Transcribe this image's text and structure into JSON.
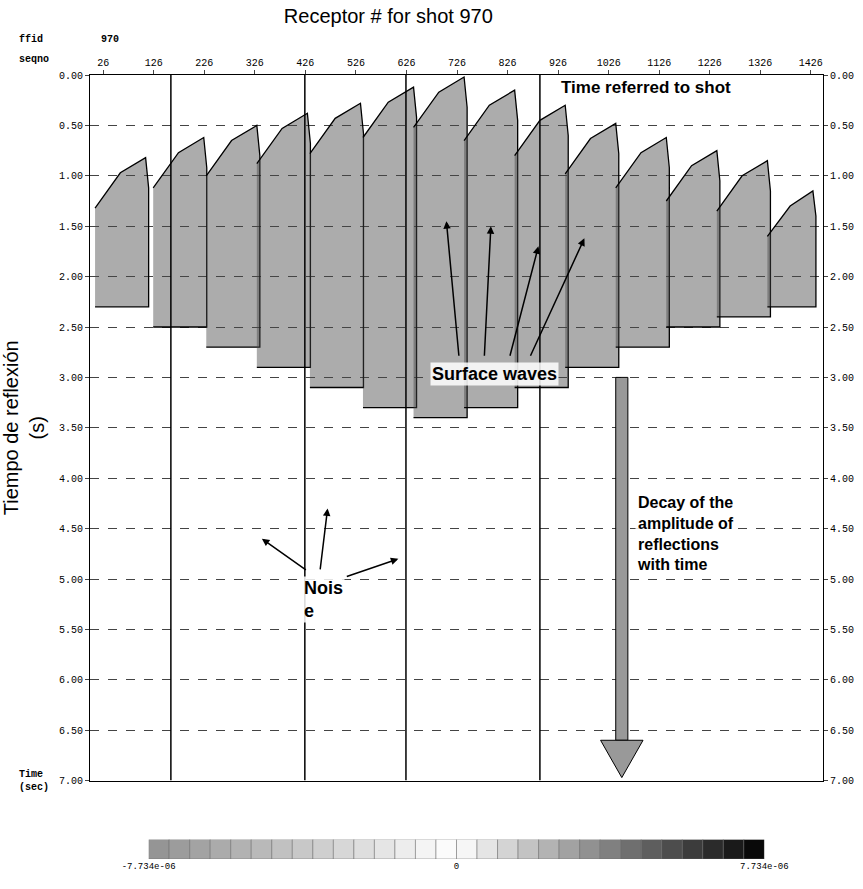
{
  "chart_data": {
    "type": "seismic_shot_gather",
    "title": "Receptor # for shot 970",
    "y_title": "Tiempo de reflexión\n(s)",
    "record": {
      "label": "ffid",
      "value": 970
    },
    "seqno_label": "seqno",
    "time_label": "Time\n(sec)",
    "color": "#000000",
    "grid": true,
    "xlim": [
      0,
      1450
    ],
    "xticks": [
      26,
      126,
      226,
      326,
      426,
      526,
      626,
      726,
      826,
      926,
      1026,
      1126,
      1226,
      1326,
      1426
    ],
    "ylim": [
      0,
      7
    ],
    "yticks": [
      {
        "value": 0,
        "label": "0.00"
      },
      {
        "value": 0.5,
        "label": "0.50"
      },
      {
        "value": 1,
        "label": "1.00"
      },
      {
        "value": 1.5,
        "label": "1.50"
      },
      {
        "value": 2,
        "label": "2.00"
      },
      {
        "value": 2.5,
        "label": "2.50"
      },
      {
        "value": 3,
        "label": "3.00"
      },
      {
        "value": 3.5,
        "label": "3.50"
      },
      {
        "value": 4,
        "label": "4.00"
      },
      {
        "value": 4.5,
        "label": "4.50"
      },
      {
        "value": 5,
        "label": "5.00"
      },
      {
        "value": 5.5,
        "label": "5.50"
      },
      {
        "value": 6,
        "label": "6.00"
      },
      {
        "value": 6.5,
        "label": "6.50"
      },
      {
        "value": 7,
        "label": "7.00"
      }
    ],
    "events": [
      {
        "x": [
          10,
          60,
          110,
          116,
          116,
          10
        ],
        "t": [
          1.32,
          0.97,
          0.82,
          1.12,
          2.3,
          2.3
        ]
      },
      {
        "x": [
          125,
          175,
          225,
          231,
          231,
          125
        ],
        "t": [
          1.12,
          0.77,
          0.62,
          0.92,
          2.5,
          2.5
        ]
      },
      {
        "x": [
          230,
          280,
          330,
          336,
          336,
          230
        ],
        "t": [
          1.0,
          0.65,
          0.5,
          0.8,
          2.7,
          2.7
        ]
      },
      {
        "x": [
          330,
          380,
          430,
          436,
          436,
          330
        ],
        "t": [
          0.88,
          0.53,
          0.38,
          0.68,
          2.9,
          2.9
        ]
      },
      {
        "x": [
          435,
          485,
          535,
          541,
          541,
          435
        ],
        "t": [
          0.78,
          0.43,
          0.28,
          0.58,
          3.1,
          3.1
        ]
      },
      {
        "x": [
          540,
          590,
          640,
          646,
          646,
          540
        ],
        "t": [
          0.62,
          0.27,
          0.12,
          0.42,
          3.3,
          3.3
        ]
      },
      {
        "x": [
          640,
          690,
          740,
          746,
          746,
          640
        ],
        "t": [
          0.52,
          0.17,
          0.02,
          0.32,
          3.4,
          3.4
        ]
      },
      {
        "x": [
          740,
          790,
          840,
          846,
          846,
          740
        ],
        "t": [
          0.65,
          0.3,
          0.15,
          0.45,
          3.3,
          3.3
        ]
      },
      {
        "x": [
          840,
          890,
          940,
          946,
          946,
          840
        ],
        "t": [
          0.8,
          0.45,
          0.3,
          0.6,
          3.1,
          3.1
        ]
      },
      {
        "x": [
          940,
          990,
          1040,
          1046,
          1046,
          940
        ],
        "t": [
          0.98,
          0.63,
          0.48,
          0.78,
          2.9,
          2.9
        ]
      },
      {
        "x": [
          1040,
          1090,
          1140,
          1146,
          1146,
          1040
        ],
        "t": [
          1.12,
          0.77,
          0.62,
          0.92,
          2.7,
          2.7
        ]
      },
      {
        "x": [
          1140,
          1190,
          1240,
          1246,
          1246,
          1140
        ],
        "t": [
          1.25,
          0.9,
          0.75,
          1.05,
          2.5,
          2.5
        ]
      },
      {
        "x": [
          1240,
          1290,
          1340,
          1346,
          1346,
          1240
        ],
        "t": [
          1.35,
          1.0,
          0.85,
          1.15,
          2.4,
          2.4
        ]
      },
      {
        "x": [
          1340,
          1385,
          1430,
          1436,
          1436,
          1340
        ],
        "t": [
          1.6,
          1.3,
          1.15,
          1.4,
          2.3,
          2.3
        ]
      }
    ],
    "noise_traces": [
      160,
      425,
      625,
      890
    ],
    "annotations": {
      "top": "Time referred to shot",
      "surface": "Surface waves",
      "noise": "Nois\ne",
      "decay": "Decay of the\namplitude of\nreflections\nwith time"
    },
    "colorbar": {
      "range": [
        -7.734e-06,
        7.734e-06
      ],
      "ticks": [
        {
          "value": -7.734e-06,
          "label": "-7.734e-06"
        },
        0,
        {
          "value": 7.734e-06,
          "label": "7.734e-06"
        }
      ]
    }
  }
}
